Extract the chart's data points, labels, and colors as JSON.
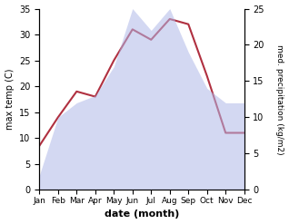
{
  "months": [
    "Jan",
    "Feb",
    "Mar",
    "Apr",
    "May",
    "Jun",
    "Jul",
    "Aug",
    "Sep",
    "Oct",
    "Nov",
    "Dec"
  ],
  "temp": [
    8.5,
    14.0,
    19.0,
    18.0,
    25.0,
    31.0,
    29.0,
    33.0,
    32.0,
    22.0,
    11.0,
    11.0
  ],
  "precip": [
    2.0,
    10.0,
    12.0,
    13.0,
    17.0,
    25.0,
    22.0,
    25.0,
    19.0,
    14.0,
    12.0,
    12.0
  ],
  "temp_ylim": [
    0,
    35
  ],
  "precip_ylim": [
    0,
    25
  ],
  "temp_yticks": [
    0,
    5,
    10,
    15,
    20,
    25,
    30,
    35
  ],
  "precip_yticks": [
    0,
    5,
    10,
    15,
    20,
    25
  ],
  "ylabel_left": "max temp (C)",
  "ylabel_right": "med. precipitation (kg/m2)",
  "xlabel": "date (month)",
  "line_color": "#b03040",
  "fill_color": "#b0b8e8",
  "fill_alpha": 0.55,
  "background_color": "#ffffff"
}
